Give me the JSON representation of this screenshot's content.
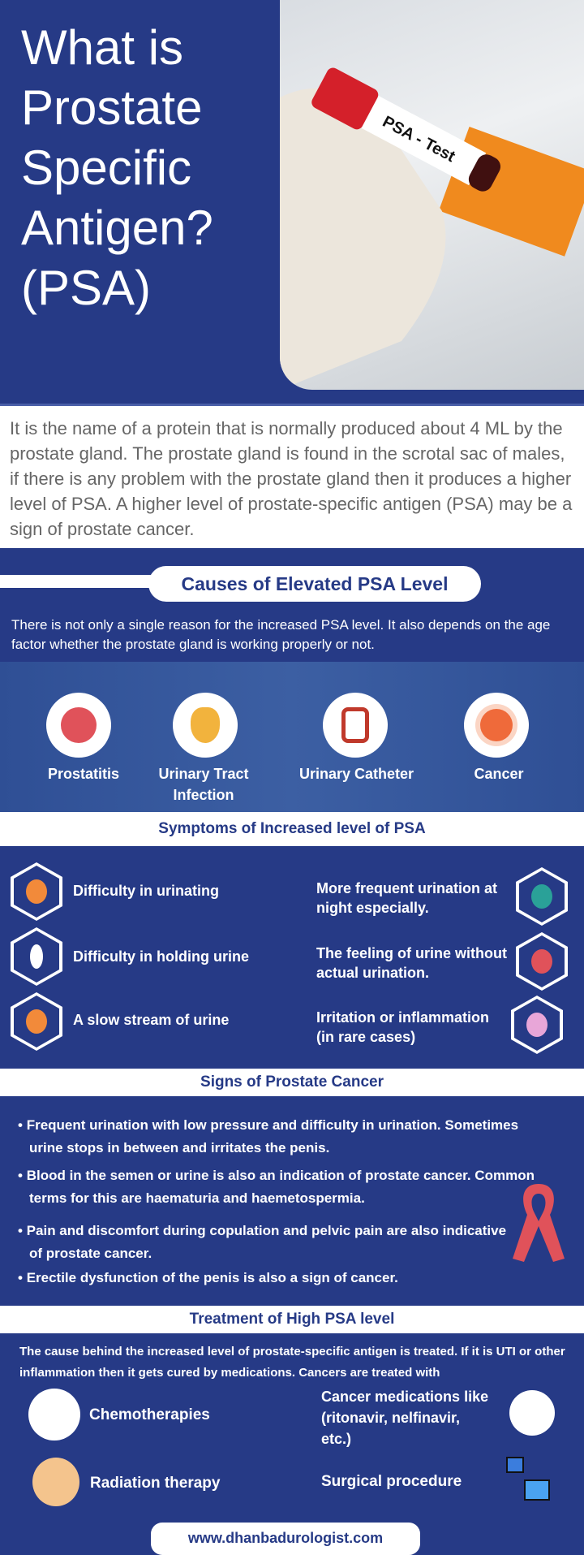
{
  "header": {
    "title": "What is Prostate Specific Antigen? (PSA)",
    "photo_label": "PSA - Test"
  },
  "intro": "It is the name of a protein that is normally produced about 4 ML by the prostate gland. The prostate gland is found in the scrotal sac of males, if there is any problem with the prostate gland then it produces a higher level of PSA. A higher level of prostate-specific antigen (PSA) may be a sign of prostate cancer.",
  "causes": {
    "title": "Causes of Elevated PSA Level",
    "text": "There is not only a single reason for the increased PSA level. It also depends on the age factor whether the prostate gland is working properly or not.",
    "items": [
      {
        "label": "Prostatitis",
        "icon": "prostate-icon"
      },
      {
        "label": "Urinary Tract Infection",
        "icon": "kidney-icon"
      },
      {
        "label": "Urinary Catheter",
        "icon": "catheter-icon"
      },
      {
        "label": "Cancer",
        "icon": "cancer-cell-icon"
      }
    ]
  },
  "symptoms": {
    "title": "Symptoms of Increased level of PSA",
    "left": [
      "Difficulty in urinating",
      "Difficulty in holding urine",
      "A slow stream of urine"
    ],
    "right": [
      "More frequent urination at night especially.",
      "The feeling of urine without actual urination.",
      "Irritation or inflammation (in rare cases)"
    ]
  },
  "signs": {
    "title": "Signs of Prostate Cancer",
    "items": [
      "Frequent urination with low pressure and difficulty in urination. Sometimes urine stops in between and irritates the penis.",
      "Blood in the semen or urine is also an indication of prostate cancer. Common terms for this are haematuria and haemetospermia.",
      "Pain and discomfort during copulation and pelvic pain are also indicative of prostate cancer.",
      "Erectile dysfunction of the penis is also a sign of cancer."
    ]
  },
  "treatment": {
    "title": "Treatment of High PSA level",
    "text": "The cause behind the increased level of prostate-specific antigen is treated. If it is UTI or other inflammation then it gets cured by medications. Cancers are treated with",
    "items": [
      "Chemotherapies",
      "Cancer medications like (ritonavir, nelfinavir, etc.)",
      "Radiation therapy",
      "Surgical procedure"
    ]
  },
  "footer": {
    "website": "www.dhanbadurologist.com"
  },
  "colors": {
    "primary": "#263a86",
    "white": "#ffffff",
    "ribbon": "#e0525a",
    "tube_cap": "#d4202a"
  }
}
